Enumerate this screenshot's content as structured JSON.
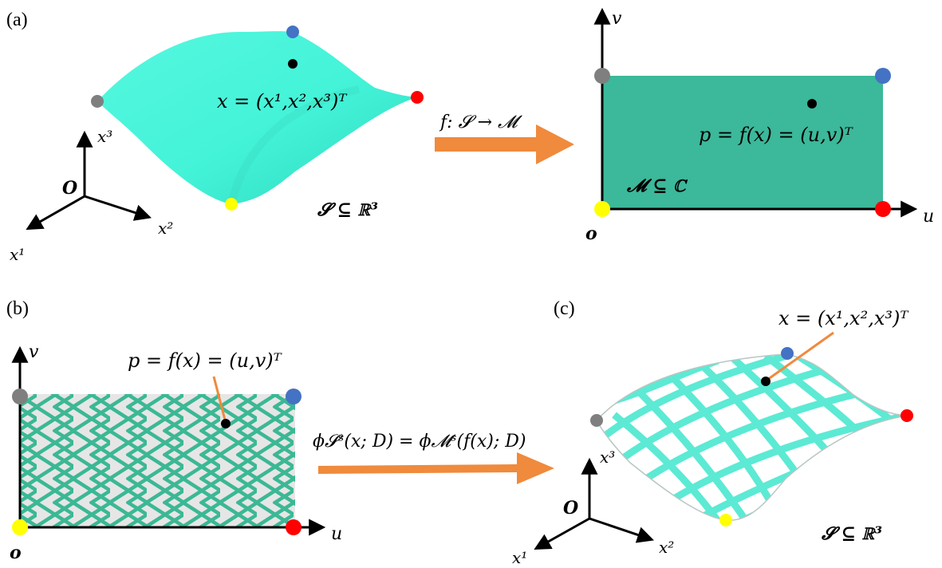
{
  "panels": {
    "a": {
      "label": "(a)",
      "surface_point": "x = (x¹,x²,x³)ᵀ",
      "surface_set": "𝓢 ⊆ ℝ³",
      "axis_origin": "O",
      "axis_1": "x¹",
      "axis_2": "x²",
      "axis_3": "x³",
      "map_label": "f: 𝓢 → 𝓜",
      "param_point": "p = f(x) = (u,v)ᵀ",
      "param_set": "𝓜 ⊆ ℂ",
      "param_origin": "o",
      "param_u": "u",
      "param_v": "v"
    },
    "b": {
      "label": "(b)",
      "param_point": "p = f(x) = (u,v)ᵀ",
      "param_origin": "o",
      "param_u": "u",
      "param_v": "v",
      "transfer_label": "ϕ𝓢ˢ(x; D) = ϕ𝓜ˢ(f(x); D)"
    },
    "c": {
      "label": "(c)",
      "surface_point": "x = (x¹,x²,x³)ᵀ",
      "surface_set": "𝓢 ⊆ ℝ³",
      "axis_origin": "O",
      "axis_1": "x¹",
      "axis_2": "x²",
      "axis_3": "x³"
    }
  },
  "colors": {
    "surface": "#4dfbe0",
    "param_fill": "#3cb89a",
    "pattern": "#3bb894",
    "pattern_bg": "#e6e6e6",
    "arrow": "#f08a3c",
    "corner_blue": "#4472c4",
    "corner_red": "#ff0000",
    "corner_gray": "#7f7f7f",
    "corner_yellow": "#ffff00"
  }
}
